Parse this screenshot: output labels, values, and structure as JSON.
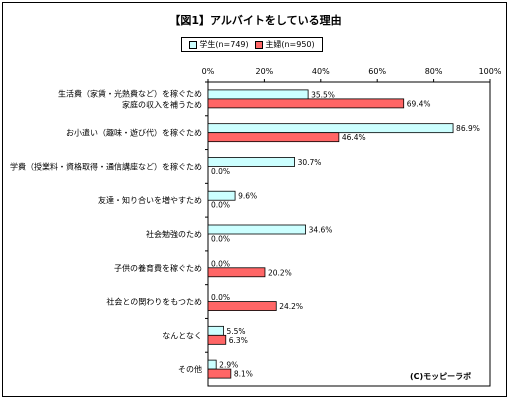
{
  "page": {
    "copyright": "(C)モッピーラボ"
  },
  "chart_data": {
    "type": "bar",
    "orientation": "horizontal",
    "title": "【図1】アルバイトをしている理由",
    "xlim": [
      0,
      100
    ],
    "x_ticks": [
      "0%",
      "20%",
      "40%",
      "60%",
      "80%",
      "100%"
    ],
    "grid": false,
    "legend_position": "top-center",
    "categories": [
      [
        "生活費（家賃・光熱費など）を稼ぐため",
        "家庭の収入を補うため"
      ],
      [
        "お小遣い（趣味・遊び代）を稼ぐため"
      ],
      [
        "学費（授業料・資格取得・通信講座など）を稼ぐため"
      ],
      [
        "友達・知り合いを増やすため"
      ],
      [
        "社会勉強のため"
      ],
      [
        "子供の養育費を稼ぐため"
      ],
      [
        "社会との関わりをもつため"
      ],
      [
        "なんとなく"
      ],
      [
        "その他"
      ]
    ],
    "series": [
      {
        "name": "学生(n=749)",
        "color": "#ccffff",
        "values": [
          35.5,
          86.9,
          30.7,
          9.6,
          34.6,
          0.0,
          0.0,
          5.5,
          2.9
        ],
        "labels": [
          "35.5%",
          "86.9%",
          "30.7%",
          "9.6%",
          "34.6%",
          "0.0%",
          "0.0%",
          "5.5%",
          "2.9%"
        ]
      },
      {
        "name": "主婦(n=950)",
        "color": "#ff6666",
        "values": [
          69.4,
          46.4,
          0.0,
          0.0,
          0.0,
          20.2,
          24.2,
          6.3,
          8.1
        ],
        "labels": [
          "69.4%",
          "46.4%",
          "0.0%",
          "0.0%",
          "0.0%",
          "20.2%",
          "24.2%",
          "6.3%",
          "8.1%"
        ]
      }
    ]
  }
}
